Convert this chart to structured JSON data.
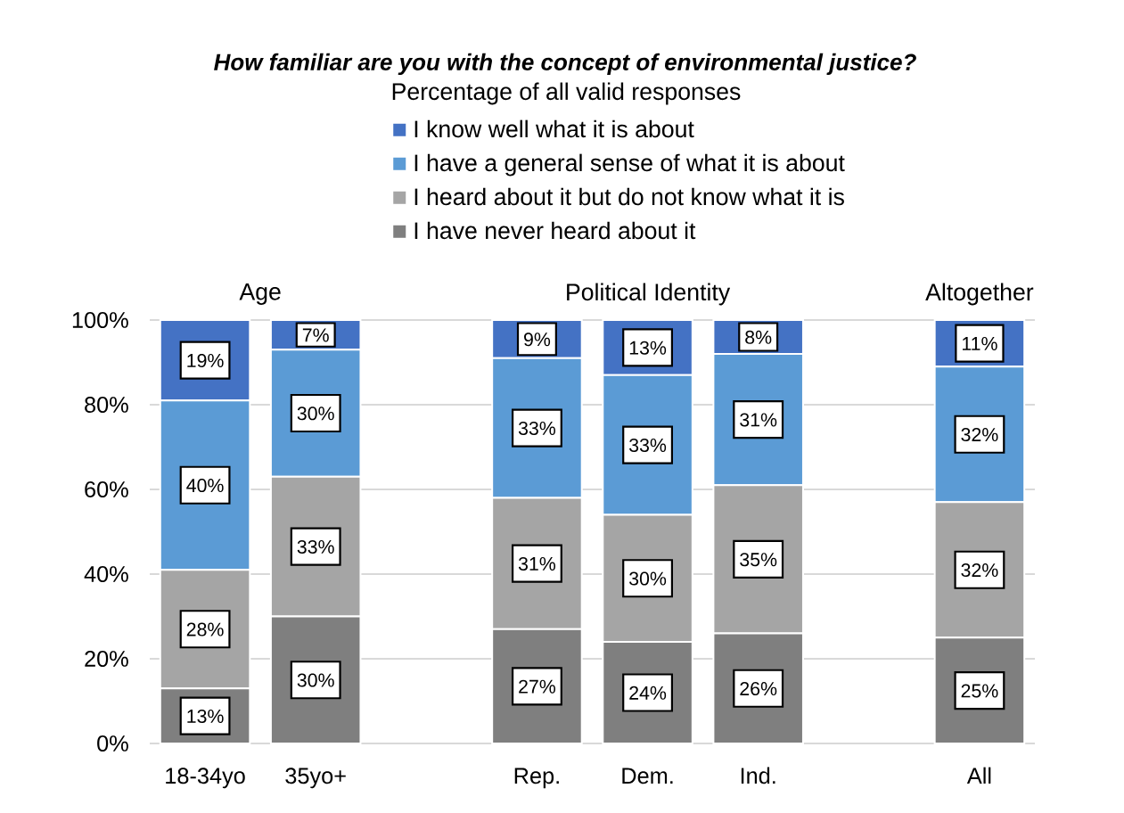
{
  "chart_data": {
    "type": "bar",
    "stacked": true,
    "title": "How familiar are you with the concept of environmental justice?",
    "subtitle": "Percentage of all valid responses",
    "categories": [
      "18-34yo",
      "35yo+",
      null,
      "Rep.",
      "Dem.",
      "Ind.",
      null,
      "All"
    ],
    "series": [
      {
        "name": "I have never heard about it",
        "color": "#7f7f7f",
        "values": [
          13,
          30,
          null,
          27,
          24,
          26,
          null,
          25
        ],
        "value_labels": [
          "13%",
          "30%",
          null,
          "27%",
          "24%",
          "26%",
          null,
          "25%"
        ]
      },
      {
        "name": "I heard about it but do not know what it is",
        "color": "#a5a5a5",
        "values": [
          28,
          33,
          null,
          31,
          30,
          35,
          null,
          32
        ],
        "value_labels": [
          "28%",
          "33%",
          null,
          "31%",
          "30%",
          "35%",
          null,
          "32%"
        ]
      },
      {
        "name": "I have a general sense of what it is about",
        "color": "#5b9bd5",
        "values": [
          40,
          30,
          null,
          33,
          33,
          31,
          null,
          32
        ],
        "value_labels": [
          "40%",
          "30%",
          null,
          "33%",
          "33%",
          "31%",
          null,
          "32%"
        ]
      },
      {
        "name": "I know well what it is about",
        "color": "#4472c4",
        "values": [
          19,
          7,
          null,
          9,
          13,
          8,
          null,
          11
        ],
        "value_labels": [
          "19%",
          "7%",
          null,
          "9%",
          "13%",
          "8%",
          null,
          "11%"
        ]
      }
    ],
    "ylim": [
      0,
      100
    ],
    "yticks": [
      {
        "value": 0,
        "label": "0%"
      },
      {
        "value": 20,
        "label": "20%"
      },
      {
        "value": 40,
        "label": "40%"
      },
      {
        "value": 60,
        "label": "60%"
      },
      {
        "value": 80,
        "label": "80%"
      },
      {
        "value": 100,
        "label": "100%"
      }
    ],
    "grid": "y",
    "legend": "top",
    "annotations": [
      "Age",
      "Political Identity",
      "Altogether"
    ]
  }
}
